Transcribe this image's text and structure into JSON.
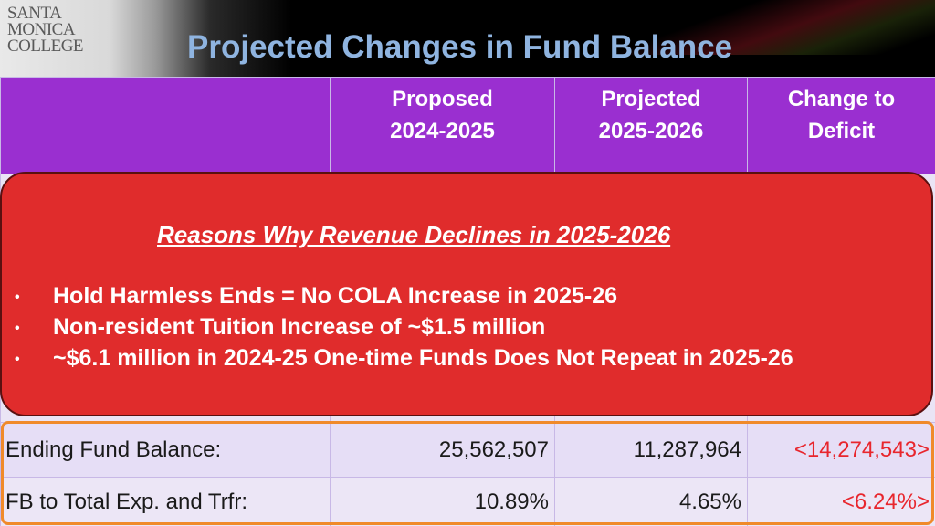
{
  "logo": {
    "line1": "SANTA",
    "line2": "MONICA",
    "line3": "COLLEGE"
  },
  "title": "Projected Changes in Fund Balance",
  "table": {
    "headers": [
      "",
      "Proposed\n2024-2025",
      "Projected\n2025-2026",
      "Change to\nDeficit"
    ],
    "header_lines": [
      [
        "",
        ""
      ],
      [
        "Proposed",
        "2024-2025"
      ],
      [
        "Projected",
        "2025-2026"
      ],
      [
        "Change to",
        "Deficit"
      ]
    ],
    "rows": [
      {
        "label": "Ending Fund Balance:",
        "v1": "25,562,507",
        "v2": "11,287,964",
        "v3": "<14,274,543>"
      },
      {
        "label": "FB to Total Exp. and Trfr:",
        "v1": "10.89%",
        "v2": "4.65%",
        "v3": "<6.24%>"
      }
    ]
  },
  "popup": {
    "title": "Reasons Why Revenue Declines in 2025-2026",
    "bullets": [
      "Hold Harmless Ends = No COLA Increase in 2025-26",
      "Non-resident Tuition Increase of ~$1.5 million",
      "~$6.1 million in 2024-25 One-time Funds Does Not Repeat in 2025-26"
    ]
  },
  "colors": {
    "header_purple": "#9a2fd0",
    "popup_red": "#e02c2c",
    "negative_red": "#e8262d",
    "title_blue": "#8fb4e0",
    "outline_orange": "#f08a2a"
  }
}
